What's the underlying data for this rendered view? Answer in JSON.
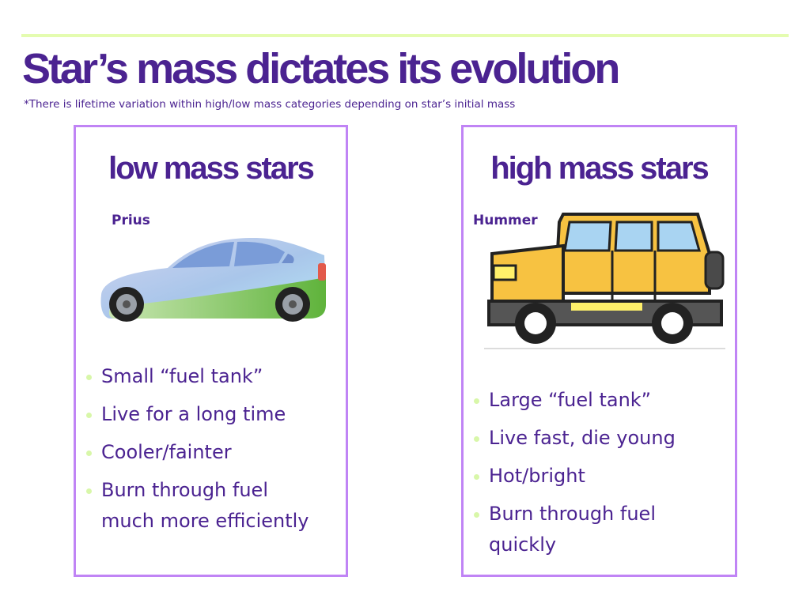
{
  "title": "Star’s mass dictates its evolution",
  "subtitle": "*There is lifetime variation within high/low mass categories depending on star’s initial mass",
  "colors": {
    "title": "#4b2391",
    "card_border": "#c084f5",
    "top_rule": "#e4fcb0",
    "bullet_dot": "#d8f7a9"
  },
  "low_mass": {
    "heading": "low mass stars",
    "car_label": "Prius",
    "car_icon": "sedan-car-icon",
    "bullets": [
      "Small “fuel tank”",
      "Live for a long time",
      "Cooler/fainter",
      "Burn through fuel much more efficiently"
    ]
  },
  "high_mass": {
    "heading": "high mass stars",
    "car_label": "Hummer",
    "car_icon": "suv-hummer-icon",
    "bullets": [
      "Large “fuel tank”",
      "Live fast, die young",
      "Hot/bright",
      "Burn through fuel quickly"
    ]
  }
}
